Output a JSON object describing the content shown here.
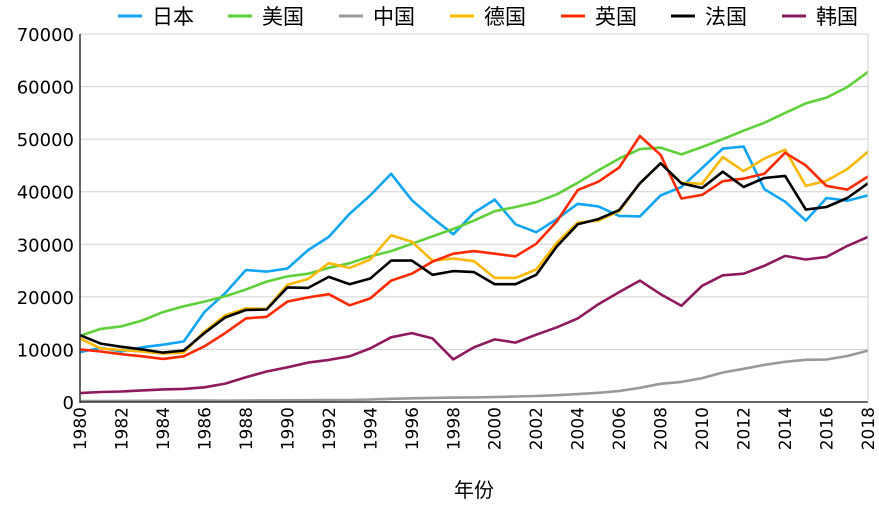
{
  "chart_data": {
    "type": "line",
    "title": "",
    "xlabel": "年份",
    "ylabel": "",
    "ylim": [
      0,
      70000
    ],
    "xlim": [
      1980,
      2018
    ],
    "yticks": [
      0,
      10000,
      20000,
      30000,
      40000,
      50000,
      60000,
      70000
    ],
    "xticks": [
      1980,
      1982,
      1984,
      1986,
      1988,
      1990,
      1992,
      1994,
      1996,
      1998,
      2000,
      2002,
      2004,
      2006,
      2008,
      2010,
      2012,
      2014,
      2016,
      2018
    ],
    "grid": "horizontal",
    "legend": "top",
    "x": [
      1980,
      1981,
      1982,
      1983,
      1984,
      1985,
      1986,
      1987,
      1988,
      1989,
      1990,
      1991,
      1992,
      1993,
      1994,
      1995,
      1996,
      1997,
      1998,
      1999,
      2000,
      2001,
      2002,
      2003,
      2004,
      2005,
      2006,
      2007,
      2008,
      2009,
      2010,
      2011,
      2012,
      2013,
      2014,
      2015,
      2016,
      2017,
      2018
    ],
    "series": [
      {
        "name": "日本",
        "color": "#0fa5f5",
        "values": [
          9500,
          10300,
          9600,
          10400,
          10900,
          11500,
          17100,
          20700,
          25100,
          24800,
          25400,
          28900,
          31400,
          35800,
          39300,
          43400,
          38400,
          35000,
          31900,
          36000,
          38500,
          33800,
          32300,
          34800,
          37700,
          37200,
          35400,
          35300,
          39300,
          40900,
          44500,
          48200,
          48600,
          40500,
          38100,
          34500,
          38800,
          38300,
          39300
        ]
      },
      {
        "name": "美国",
        "color": "#5fd03a",
        "values": [
          12600,
          13900,
          14400,
          15500,
          17100,
          18200,
          19100,
          20100,
          21400,
          22900,
          23900,
          24400,
          25500,
          26400,
          27700,
          28700,
          30100,
          31500,
          32900,
          34500,
          36300,
          37100,
          38000,
          39500,
          41700,
          44100,
          46300,
          48100,
          48400,
          47100,
          48500,
          50000,
          51600,
          53100,
          55000,
          56800,
          57900,
          59900,
          62800
        ]
      },
      {
        "name": "中国",
        "color": "#999999",
        "values": [
          195,
          197,
          203,
          225,
          250,
          294,
          282,
          252,
          284,
          311,
          318,
          333,
          366,
          377,
          473,
          610,
          709,
          782,
          829,
          873,
          959,
          1053,
          1149,
          1289,
          1509,
          1753,
          2099,
          2694,
          3468,
          3832,
          4550,
          5618,
          6317,
          7051,
          7651,
          8033,
          8079,
          8759,
          9771
        ]
      },
      {
        "name": "德国",
        "color": "#fbb800",
        "values": [
          12100,
          10200,
          9900,
          9600,
          9200,
          9400,
          13400,
          16500,
          17800,
          17700,
          22300,
          23400,
          26400,
          25500,
          27100,
          31700,
          30500,
          26900,
          27300,
          26800,
          23600,
          23600,
          25200,
          30300,
          34100,
          34500,
          36300,
          41600,
          45400,
          41700,
          41500,
          46600,
          43900,
          46300,
          48000,
          41100,
          42100,
          44300,
          47600
        ]
      },
      {
        "name": "英国",
        "color": "#ff2a00",
        "values": [
          10000,
          9600,
          9100,
          8700,
          8200,
          8700,
          10600,
          13100,
          15900,
          16200,
          19100,
          19900,
          20500,
          18400,
          19700,
          23100,
          24400,
          26700,
          28200,
          28700,
          28200,
          27700,
          30100,
          34400,
          40300,
          41900,
          44600,
          50600,
          47000,
          38700,
          39400,
          42000,
          42500,
          43400,
          47400,
          45000,
          41100,
          40400,
          42900
        ]
      },
      {
        "name": "法国",
        "color": "#000000",
        "values": [
          12700,
          11100,
          10500,
          10000,
          9400,
          9800,
          13100,
          16100,
          17500,
          17600,
          21800,
          21700,
          23800,
          22400,
          23500,
          26900,
          26900,
          24200,
          24900,
          24700,
          22400,
          22400,
          24200,
          29600,
          33800,
          34800,
          36500,
          41600,
          45400,
          41600,
          40700,
          43800,
          40900,
          42600,
          43000,
          36600,
          37100,
          38800,
          41600
        ]
      },
      {
        "name": "韩国",
        "color": "#8e1a5d",
        "values": [
          1700,
          1900,
          2000,
          2200,
          2400,
          2500,
          2800,
          3500,
          4700,
          5800,
          6600,
          7500,
          8000,
          8700,
          10200,
          12300,
          13100,
          12100,
          8100,
          10400,
          11900,
          11300,
          12800,
          14200,
          15900,
          18600,
          20900,
          23100,
          20500,
          18300,
          22100,
          24100,
          24400,
          25900,
          27800,
          27100,
          27600,
          29700,
          31400
        ]
      }
    ]
  }
}
